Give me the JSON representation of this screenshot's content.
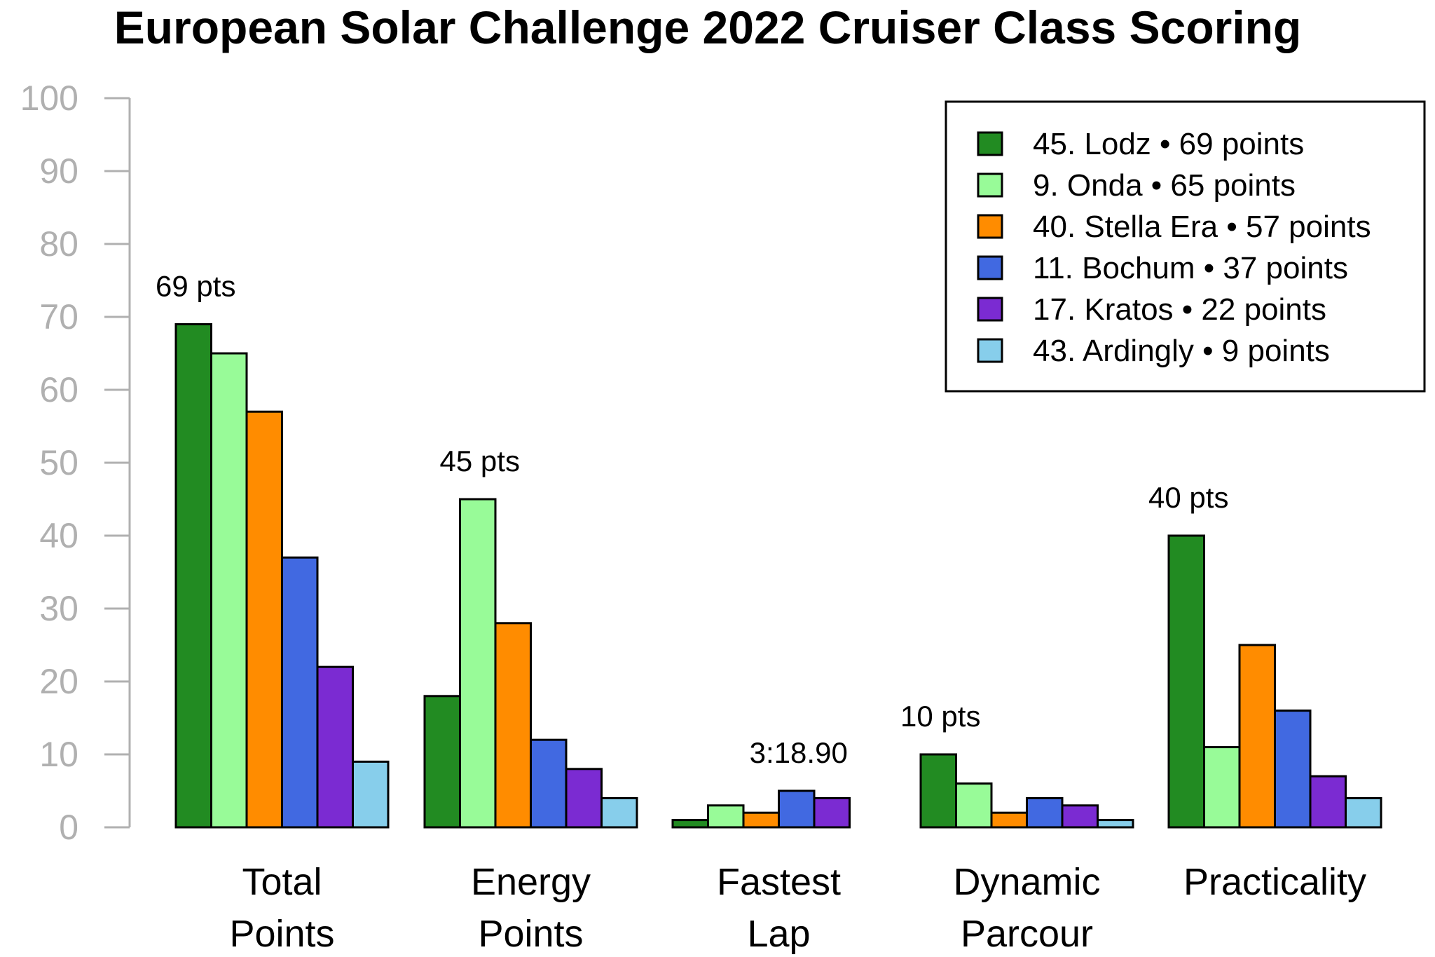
{
  "chart_data": {
    "type": "bar",
    "title": "European Solar Challenge 2022 Cruiser Class Scoring",
    "xlabel": "",
    "ylabel": "",
    "ylim": [
      0,
      100
    ],
    "yticks": [
      "0",
      "10",
      "20",
      "30",
      "40",
      "50",
      "60",
      "70",
      "80",
      "90",
      "100"
    ],
    "grid": false,
    "legend_position": "top-right",
    "categories": [
      [
        "Total",
        "Points"
      ],
      [
        "Energy",
        "Points"
      ],
      [
        "Fastest",
        "Lap"
      ],
      [
        "Dynamic",
        "Parcour"
      ],
      [
        "Practicality"
      ]
    ],
    "series": [
      {
        "name": "45. Lodz • 69 points",
        "color": "#228B22",
        "values": [
          69,
          18,
          1,
          10,
          40
        ]
      },
      {
        "name": "9. Onda • 65 points",
        "color": "#98FB98",
        "values": [
          65,
          45,
          3,
          6,
          11
        ]
      },
      {
        "name": "40. Stella Era • 57 points",
        "color": "#FF8C00",
        "values": [
          57,
          28,
          2,
          2,
          25
        ]
      },
      {
        "name": "11. Bochum • 37 points",
        "color": "#4169E1",
        "values": [
          37,
          12,
          5,
          4,
          16
        ]
      },
      {
        "name": "17. Kratos • 22 points",
        "color": "#7B2BD2",
        "values": [
          22,
          8,
          4,
          3,
          7
        ]
      },
      {
        "name": "43. Ardingly • 9 points",
        "color": "#87CEEB",
        "values": [
          9,
          4,
          0,
          1,
          4
        ]
      }
    ],
    "annotations": [
      {
        "text": "69 pts",
        "category": 0
      },
      {
        "text": "45 pts",
        "category": 1
      },
      {
        "text": "3:18.90",
        "category": 2
      },
      {
        "text": "10 pts",
        "category": 3
      },
      {
        "text": "40 pts",
        "category": 4
      }
    ]
  }
}
